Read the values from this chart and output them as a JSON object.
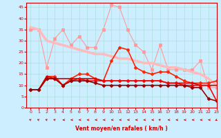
{
  "title": "",
  "xlabel": "Vent moyen/en rafales ( km/h )",
  "xlim": [
    -0.5,
    23
  ],
  "ylim": [
    0,
    47
  ],
  "yticks": [
    0,
    5,
    10,
    15,
    20,
    25,
    30,
    35,
    40,
    45
  ],
  "xticks": [
    0,
    1,
    2,
    3,
    4,
    5,
    6,
    7,
    8,
    9,
    10,
    11,
    12,
    13,
    14,
    15,
    16,
    17,
    18,
    19,
    20,
    21,
    22,
    23
  ],
  "background_color": "#cceeff",
  "grid_color": "#aadddd",
  "lines": [
    {
      "x": [
        0,
        1,
        2,
        3,
        4,
        5,
        6,
        7,
        8,
        9,
        10,
        11,
        12,
        13,
        14,
        15,
        16,
        17,
        18,
        19,
        20,
        21,
        22,
        23
      ],
      "y": [
        35,
        35,
        18,
        31,
        35,
        28,
        32,
        27,
        27,
        35,
        46,
        45,
        35,
        28,
        25,
        17,
        28,
        17,
        17,
        17,
        17,
        21,
        9,
        9
      ],
      "color": "#ff9999",
      "lw": 0.8,
      "marker": "s",
      "ms": 2.5,
      "mfc": "#ff9999"
    },
    {
      "x": [
        0,
        1,
        2,
        3,
        4,
        5,
        6,
        7,
        8,
        9,
        10,
        11,
        12,
        13,
        14,
        15,
        16,
        17,
        18,
        19,
        20,
        21,
        22,
        23
      ],
      "y": [
        36,
        35,
        30,
        29,
        28,
        27,
        26,
        25,
        24,
        24,
        23,
        22,
        22,
        21,
        20,
        20,
        19,
        18,
        18,
        17,
        16,
        15,
        13,
        10
      ],
      "color": "#ffbbbb",
      "lw": 2.5,
      "marker": null,
      "ms": 0,
      "mfc": "#ffbbbb"
    },
    {
      "x": [
        0,
        1,
        2,
        3,
        4,
        5,
        6,
        7,
        8,
        9,
        10,
        11,
        12,
        13,
        14,
        15,
        16,
        17,
        18,
        19,
        20,
        21,
        22,
        23
      ],
      "y": [
        8,
        8,
        14,
        14,
        10,
        13,
        15,
        15,
        13,
        12,
        21,
        27,
        26,
        18,
        16,
        15,
        16,
        16,
        14,
        12,
        11,
        11,
        11,
        12
      ],
      "color": "#ff2200",
      "lw": 1.2,
      "marker": "P",
      "ms": 3,
      "mfc": "#ff2200"
    },
    {
      "x": [
        0,
        1,
        2,
        3,
        4,
        5,
        6,
        7,
        8,
        9,
        10,
        11,
        12,
        13,
        14,
        15,
        16,
        17,
        18,
        19,
        20,
        21,
        22,
        23
      ],
      "y": [
        8,
        8,
        14,
        13,
        13,
        13,
        13,
        13,
        13,
        12,
        12,
        12,
        12,
        12,
        12,
        12,
        12,
        11,
        11,
        11,
        11,
        10,
        10,
        10
      ],
      "color": "#cc0000",
      "lw": 1.2,
      "marker": null,
      "ms": 0,
      "mfc": "#cc0000"
    },
    {
      "x": [
        0,
        1,
        2,
        3,
        4,
        5,
        6,
        7,
        8,
        9,
        10,
        11,
        12,
        13,
        14,
        15,
        16,
        17,
        18,
        19,
        20,
        21,
        22,
        23
      ],
      "y": [
        8,
        8,
        13,
        13,
        10,
        12,
        13,
        12,
        12,
        12,
        12,
        12,
        12,
        12,
        12,
        12,
        12,
        11,
        11,
        10,
        10,
        10,
        10,
        3
      ],
      "color": "#ff0000",
      "lw": 1.2,
      "marker": "D",
      "ms": 2.5,
      "mfc": "#ff0000"
    },
    {
      "x": [
        0,
        1,
        2,
        3,
        4,
        5,
        6,
        7,
        8,
        9,
        10,
        11,
        12,
        13,
        14,
        15,
        16,
        17,
        18,
        19,
        20,
        21,
        22,
        23
      ],
      "y": [
        8,
        8,
        13,
        13,
        10,
        12,
        12,
        12,
        11,
        10,
        10,
        10,
        10,
        10,
        10,
        10,
        10,
        10,
        10,
        10,
        9,
        9,
        4,
        3
      ],
      "color": "#990000",
      "lw": 1.2,
      "marker": "D",
      "ms": 2.5,
      "mfc": "#990000"
    }
  ],
  "wind_dirs": [
    225,
    225,
    225,
    225,
    270,
    270,
    270,
    270,
    270,
    270,
    270,
    270,
    270,
    270,
    270,
    270,
    225,
    270,
    270,
    270,
    270,
    270,
    270,
    315
  ],
  "arrow_color": "#cc0000"
}
